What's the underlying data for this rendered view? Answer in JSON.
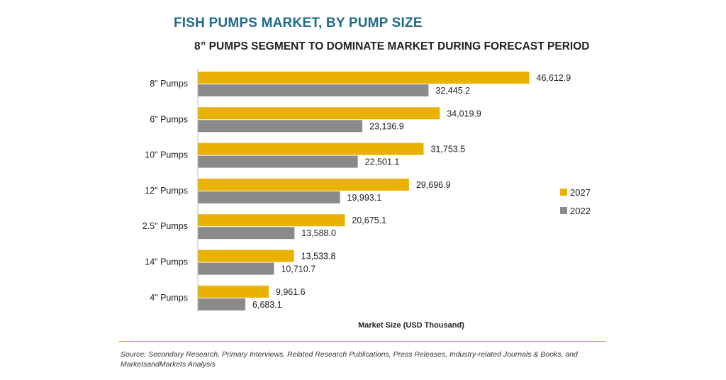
{
  "title": "FISH PUMPS MARKET, BY PUMP SIZE",
  "subtitle": "8” PUMPS SEGMENT TO DOMINATE MARKET DURING FORECAST PERIOD",
  "colors": {
    "accent_2027": "#eab200",
    "accent_2022": "#8a8a8a",
    "title": "#1f6a8a",
    "rule": "#c9a227"
  },
  "chart_data": {
    "type": "bar",
    "orientation": "horizontal",
    "categories": [
      "8\" Pumps",
      "6\" Pumps",
      "10\" Pumps",
      "12\" Pumps",
      "2.5\" Pumps",
      "14\" Pumps",
      "4\" Pumps"
    ],
    "series": [
      {
        "name": "2027",
        "color": "#eab200",
        "values": [
          46612.9,
          34019.9,
          31753.5,
          29696.9,
          20675.1,
          13533.8,
          9961.6
        ],
        "labels": [
          "46,612.9",
          "34,019.9",
          "31,753.5",
          "29,696.9",
          "20,675.1",
          "13,533.8",
          "9,961.6"
        ]
      },
      {
        "name": "2022",
        "color": "#8a8a8a",
        "values": [
          32445.2,
          23136.9,
          22501.1,
          19993.1,
          13588.0,
          10710.7,
          6683.1
        ],
        "labels": [
          "32,445.2",
          "23,136.9",
          "22,501.1",
          "19,993.1",
          "13,588.0",
          "10,710.7",
          "6,683.1"
        ]
      }
    ],
    "xlabel": "Market Size (USD Thousand)",
    "ylabel": "",
    "xlim": [
      0,
      50000
    ],
    "grid": false,
    "legend_position": "right"
  },
  "source_text": "Source: Secondary Research, Primary Interviews, Related Research Publications, Press Releases, Industry-related Journals & Books, and MarketsandMarkets Analysis"
}
